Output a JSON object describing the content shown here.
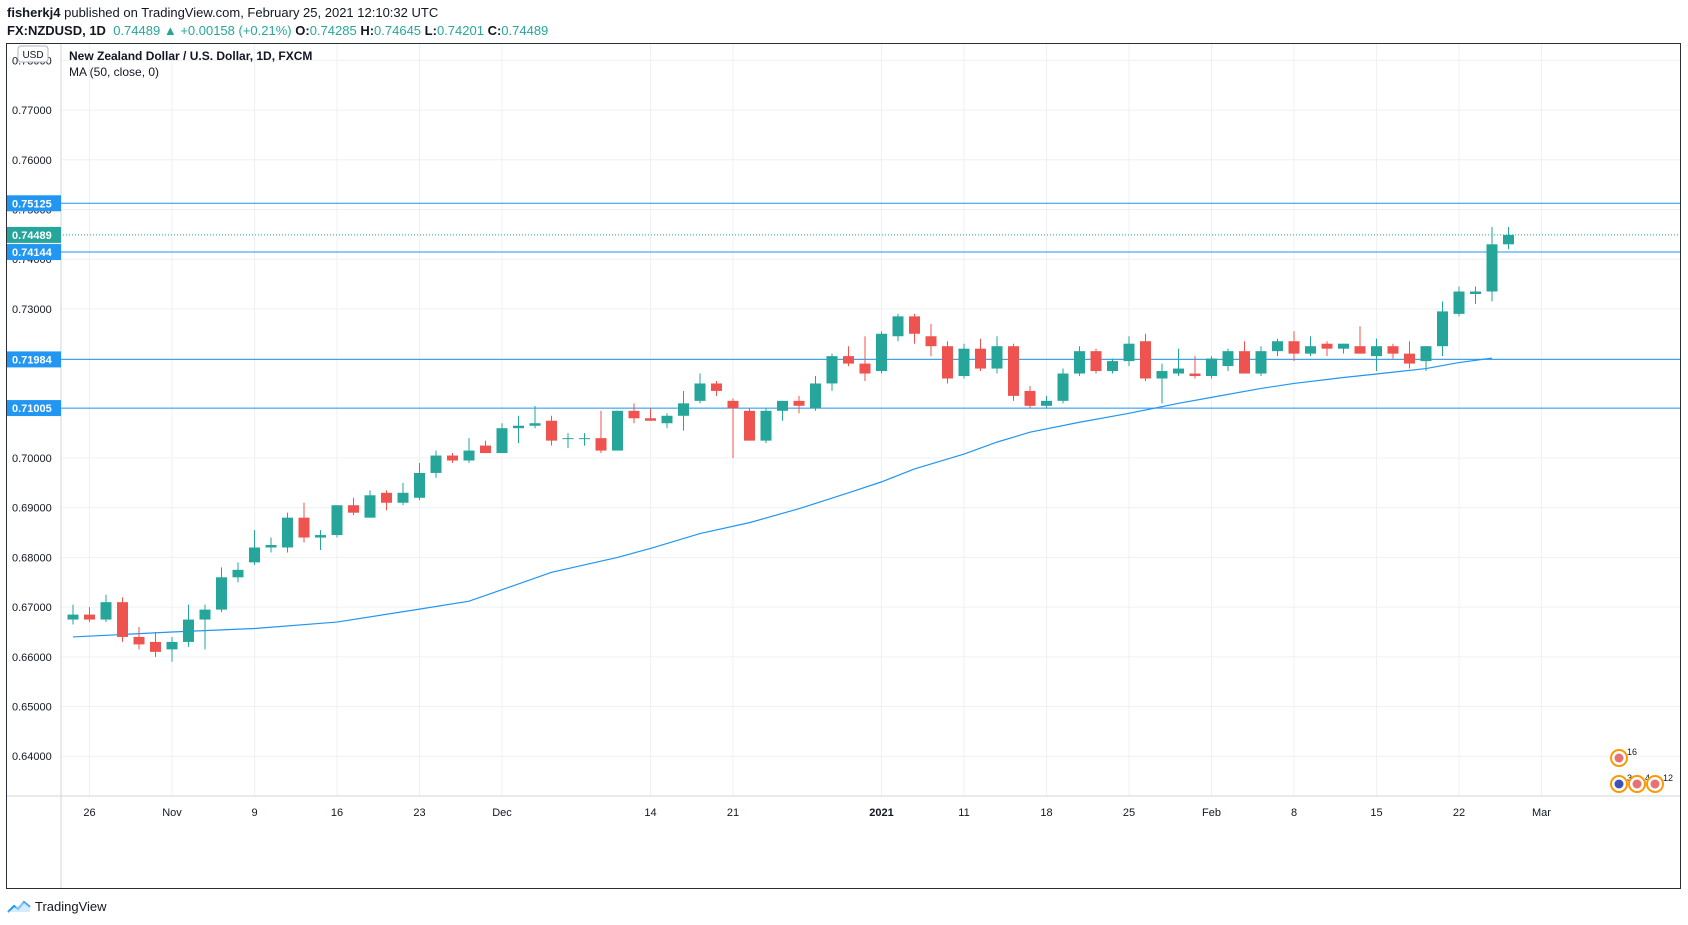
{
  "header": {
    "publisher": "fisherkj4",
    "published_text": "published on TradingView.com, February 25, 2021 12:10:32 UTC",
    "symbol": "FX:NZDUSD, 1D",
    "last": "0.74489",
    "change_arrow": "▲",
    "change": "+0.00158 (+0.21%)",
    "o_label": "O:",
    "o": "0.74285",
    "h_label": "H:",
    "h": "0.74645",
    "l_label": "L:",
    "l": "0.74201",
    "c_label": "C:",
    "c": "0.74489"
  },
  "footer": {
    "brand": "TradingView"
  },
  "colors": {
    "up": "#26a69a",
    "down": "#ef5350",
    "line": "#2196f3",
    "grid": "#eef0f3"
  },
  "chart_data": {
    "type": "candlestick",
    "title": "New Zealand Dollar / U.S. Dollar, 1D, FXCM",
    "indicator": "MA (50, close, 0)",
    "currency": "USD",
    "ylim": [
      0.632,
      0.7835
    ],
    "y_ticks": [
      "0.78000",
      "0.77000",
      "0.76000",
      "0.75000",
      "0.74000",
      "0.73000",
      "0.72000",
      "0.71000",
      "0.70000",
      "0.69000",
      "0.68000",
      "0.67000",
      "0.66000",
      "0.65000",
      "0.64000"
    ],
    "x_ticks": [
      {
        "i": 1,
        "label": "26"
      },
      {
        "i": 6,
        "label": "Nov"
      },
      {
        "i": 11,
        "label": "9"
      },
      {
        "i": 16,
        "label": "16"
      },
      {
        "i": 21,
        "label": "23"
      },
      {
        "i": 26,
        "label": "Dec"
      },
      {
        "i": 35,
        "label": "14"
      },
      {
        "i": 40,
        "label": "21"
      },
      {
        "i": 49,
        "label": "2021"
      },
      {
        "i": 54,
        "label": "11"
      },
      {
        "i": 59,
        "label": "18"
      },
      {
        "i": 64,
        "label": "25"
      },
      {
        "i": 69,
        "label": "Feb"
      },
      {
        "i": 74,
        "label": "8"
      },
      {
        "i": 79,
        "label": "15"
      },
      {
        "i": 84,
        "label": "22"
      },
      {
        "i": 89,
        "label": "Mar"
      }
    ],
    "horizontal_lines": [
      {
        "label": "0.75125",
        "value": 0.75125
      },
      {
        "label": "0.74144",
        "value": 0.74144
      },
      {
        "label": "0.71984",
        "value": 0.71984
      },
      {
        "label": "0.71005",
        "value": 0.71005
      }
    ],
    "last_price": {
      "label": "0.74489",
      "value": 0.74489
    },
    "events": [
      {
        "label": "16",
        "row": "top"
      },
      {
        "label": "3",
        "row": "bottom"
      },
      {
        "label": "4",
        "row": "bottom"
      },
      {
        "label": "12",
        "row": "bottom"
      }
    ],
    "ohlc": [
      [
        0.6675,
        0.6705,
        0.6665,
        0.6685
      ],
      [
        0.6685,
        0.67,
        0.667,
        0.6675
      ],
      [
        0.6675,
        0.6725,
        0.667,
        0.671
      ],
      [
        0.671,
        0.672,
        0.663,
        0.664
      ],
      [
        0.664,
        0.666,
        0.6615,
        0.6625
      ],
      [
        0.663,
        0.665,
        0.66,
        0.661
      ],
      [
        0.6615,
        0.664,
        0.659,
        0.663
      ],
      [
        0.663,
        0.6705,
        0.662,
        0.6675
      ],
      [
        0.6675,
        0.6705,
        0.6615,
        0.6695
      ],
      [
        0.6695,
        0.678,
        0.669,
        0.676
      ],
      [
        0.676,
        0.679,
        0.675,
        0.6775
      ],
      [
        0.679,
        0.6855,
        0.6785,
        0.682
      ],
      [
        0.682,
        0.684,
        0.681,
        0.6825
      ],
      [
        0.682,
        0.689,
        0.681,
        0.688
      ],
      [
        0.688,
        0.691,
        0.683,
        0.684
      ],
      [
        0.684,
        0.6855,
        0.6815,
        0.6845
      ],
      [
        0.6845,
        0.6905,
        0.684,
        0.6905
      ],
      [
        0.6905,
        0.692,
        0.6885,
        0.689
      ],
      [
        0.688,
        0.6935,
        0.688,
        0.6925
      ],
      [
        0.693,
        0.6935,
        0.6895,
        0.691
      ],
      [
        0.691,
        0.695,
        0.6905,
        0.693
      ],
      [
        0.692,
        0.699,
        0.6915,
        0.697
      ],
      [
        0.697,
        0.7015,
        0.696,
        0.7005
      ],
      [
        0.7005,
        0.701,
        0.699,
        0.6995
      ],
      [
        0.6995,
        0.704,
        0.699,
        0.7015
      ],
      [
        0.7025,
        0.7035,
        0.701,
        0.701
      ],
      [
        0.701,
        0.707,
        0.701,
        0.706
      ],
      [
        0.706,
        0.7085,
        0.703,
        0.7065
      ],
      [
        0.7065,
        0.7105,
        0.706,
        0.707
      ],
      [
        0.7075,
        0.7085,
        0.7025,
        0.7035
      ],
      [
        0.704,
        0.705,
        0.702,
        0.704
      ],
      [
        0.704,
        0.705,
        0.7025,
        0.704
      ],
      [
        0.704,
        0.7095,
        0.701,
        0.7015
      ],
      [
        0.7015,
        0.7095,
        0.7015,
        0.7095
      ],
      [
        0.7095,
        0.711,
        0.707,
        0.708
      ],
      [
        0.708,
        0.71,
        0.7075,
        0.7075
      ],
      [
        0.707,
        0.709,
        0.706,
        0.7085
      ],
      [
        0.7085,
        0.7135,
        0.7055,
        0.711
      ],
      [
        0.7115,
        0.717,
        0.711,
        0.715
      ],
      [
        0.715,
        0.7155,
        0.7125,
        0.7135
      ],
      [
        0.7115,
        0.712,
        0.7,
        0.71
      ],
      [
        0.7095,
        0.71,
        0.7035,
        0.7035
      ],
      [
        0.7035,
        0.71,
        0.703,
        0.7095
      ],
      [
        0.7095,
        0.7115,
        0.7075,
        0.7115
      ],
      [
        0.7115,
        0.7125,
        0.709,
        0.7105
      ],
      [
        0.71,
        0.7165,
        0.7095,
        0.715
      ],
      [
        0.715,
        0.721,
        0.7135,
        0.7205
      ],
      [
        0.7205,
        0.7225,
        0.7185,
        0.719
      ],
      [
        0.719,
        0.7245,
        0.7155,
        0.717
      ],
      [
        0.7175,
        0.7255,
        0.717,
        0.725
      ],
      [
        0.7245,
        0.729,
        0.7235,
        0.7285
      ],
      [
        0.7285,
        0.729,
        0.723,
        0.725
      ],
      [
        0.7245,
        0.727,
        0.7205,
        0.7225
      ],
      [
        0.7225,
        0.7235,
        0.715,
        0.716
      ],
      [
        0.7165,
        0.723,
        0.716,
        0.722
      ],
      [
        0.722,
        0.724,
        0.7175,
        0.718
      ],
      [
        0.718,
        0.7245,
        0.717,
        0.7225
      ],
      [
        0.7225,
        0.723,
        0.7115,
        0.7125
      ],
      [
        0.7135,
        0.7145,
        0.71,
        0.7105
      ],
      [
        0.7105,
        0.7125,
        0.71,
        0.7115
      ],
      [
        0.7115,
        0.718,
        0.711,
        0.717
      ],
      [
        0.717,
        0.7225,
        0.7165,
        0.7215
      ],
      [
        0.7215,
        0.722,
        0.717,
        0.7175
      ],
      [
        0.7175,
        0.72,
        0.717,
        0.7195
      ],
      [
        0.7195,
        0.7245,
        0.7185,
        0.723
      ],
      [
        0.7235,
        0.725,
        0.7155,
        0.716
      ],
      [
        0.716,
        0.719,
        0.711,
        0.7175
      ],
      [
        0.717,
        0.722,
        0.7165,
        0.718
      ],
      [
        0.717,
        0.7205,
        0.716,
        0.7165
      ],
      [
        0.7165,
        0.7205,
        0.716,
        0.72
      ],
      [
        0.7185,
        0.722,
        0.7175,
        0.7215
      ],
      [
        0.7215,
        0.7235,
        0.718,
        0.717
      ],
      [
        0.717,
        0.7225,
        0.7165,
        0.7215
      ],
      [
        0.7215,
        0.724,
        0.7205,
        0.7235
      ],
      [
        0.7235,
        0.7255,
        0.7195,
        0.721
      ],
      [
        0.721,
        0.7245,
        0.7205,
        0.7225
      ],
      [
        0.723,
        0.7235,
        0.7205,
        0.722
      ],
      [
        0.722,
        0.723,
        0.721,
        0.723
      ],
      [
        0.7225,
        0.7265,
        0.7215,
        0.721
      ],
      [
        0.7205,
        0.724,
        0.7175,
        0.7225
      ],
      [
        0.7225,
        0.723,
        0.72,
        0.721
      ],
      [
        0.721,
        0.7235,
        0.718,
        0.719
      ],
      [
        0.7195,
        0.7225,
        0.7175,
        0.7225
      ],
      [
        0.7225,
        0.7315,
        0.7205,
        0.7295
      ],
      [
        0.729,
        0.7345,
        0.7285,
        0.7335
      ],
      [
        0.733,
        0.7345,
        0.731,
        0.7335
      ],
      [
        0.7335,
        0.7465,
        0.7315,
        0.743
      ],
      [
        0.743,
        0.7465,
        0.742,
        0.7449
      ]
    ],
    "ma50": [
      [
        0,
        0.664
      ],
      [
        6,
        0.665
      ],
      [
        11,
        0.6657
      ],
      [
        16,
        0.667
      ],
      [
        21,
        0.6696
      ],
      [
        24,
        0.6712
      ],
      [
        26,
        0.6735
      ],
      [
        29,
        0.677
      ],
      [
        33,
        0.68
      ],
      [
        35,
        0.6818
      ],
      [
        38,
        0.6848
      ],
      [
        41,
        0.687
      ],
      [
        44,
        0.6898
      ],
      [
        47,
        0.693
      ],
      [
        49,
        0.6952
      ],
      [
        51,
        0.6978
      ],
      [
        54,
        0.7008
      ],
      [
        56,
        0.7032
      ],
      [
        58,
        0.7052
      ],
      [
        61,
        0.7072
      ],
      [
        64,
        0.709
      ],
      [
        67,
        0.711
      ],
      [
        69,
        0.7122
      ],
      [
        72,
        0.714
      ],
      [
        74,
        0.715
      ],
      [
        77,
        0.7162
      ],
      [
        79,
        0.7169
      ],
      [
        82,
        0.718
      ],
      [
        84,
        0.7192
      ],
      [
        86,
        0.7201
      ]
    ]
  }
}
